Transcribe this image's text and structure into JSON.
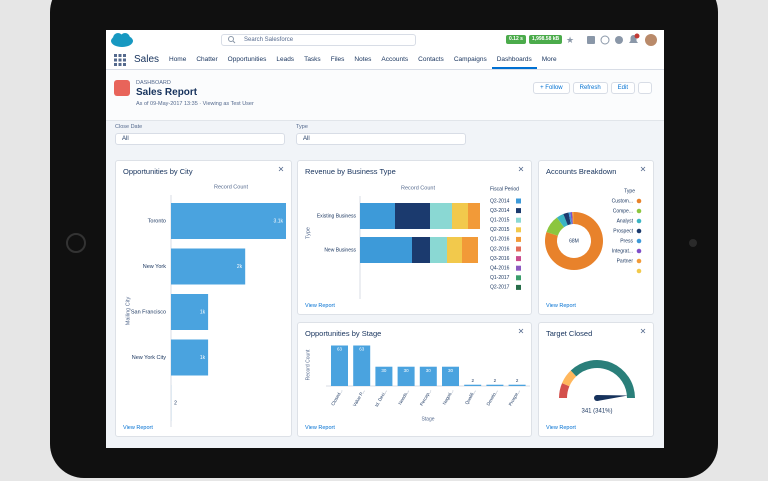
{
  "header": {
    "search_placeholder": "Search Salesforce",
    "badges": [
      "0.12 s",
      "1,998.58 kB"
    ]
  },
  "nav": {
    "app": "Sales",
    "tabs": [
      "Home",
      "Chatter",
      "Opportunities",
      "Leads",
      "Tasks",
      "Files",
      "Notes",
      "Accounts",
      "Contacts",
      "Campaigns",
      "Dashboards",
      "More"
    ],
    "active": 10
  },
  "page_header": {
    "object": "DASHBOARD",
    "title": "Sales Report",
    "subtitle": "As of 09-May-2017 13:35 · Viewing as Test User",
    "buttons": [
      "+ Follow",
      "Refresh",
      "Edit"
    ]
  },
  "filters": [
    {
      "label": "Close Date",
      "value": "All"
    },
    {
      "label": "Type",
      "value": "All"
    }
  ],
  "chart_data": [
    {
      "type": "hbar",
      "title": "Opportunities by City",
      "x_label": "Record Count",
      "y_label": "Mailing City",
      "link": "View Report",
      "categories": [
        "Toronto",
        "New York",
        "San Francisco",
        "New York City",
        null
      ],
      "values": [
        3100,
        2000,
        1000,
        1000,
        2
      ],
      "value_labels": [
        "3.1k",
        "2k",
        "1k",
        "1k",
        "2"
      ],
      "xlim": [
        0,
        3100
      ],
      "color": "#4aa3df"
    },
    {
      "type": "stacked_hbar",
      "title": "Revenue by Business Type",
      "x_label": "Record Count",
      "y_label": "Type",
      "legend_title": "Fiscal Period",
      "link": "View Report",
      "categories": [
        "Existing Business",
        "New Business"
      ],
      "xlim": [
        0,
        125
      ],
      "series": [
        {
          "name": "Q2-2014",
          "color": "#3d9ad9",
          "values": [
            35,
            52
          ]
        },
        {
          "name": "Q3-2014",
          "color": "#1b3a6e",
          "values": [
            35,
            18
          ]
        },
        {
          "name": "Q1-2015",
          "color": "#8ad8d3",
          "values": [
            22,
            17
          ]
        },
        {
          "name": "Q2-2015",
          "color": "#f2c94c",
          "values": [
            16,
            15
          ]
        },
        {
          "name": "Q1-2016",
          "color": "#f29a38",
          "values": [
            12,
            16
          ]
        },
        {
          "name": "Q2-2016",
          "color": "#e26b5a",
          "values": [
            0,
            0
          ]
        },
        {
          "name": "Q3-2016",
          "color": "#c94c8e",
          "values": [
            0,
            0
          ]
        },
        {
          "name": "Q4-2016",
          "color": "#8b59c0",
          "values": [
            0,
            0
          ]
        },
        {
          "name": "Q1-2017",
          "color": "#3a9d6b",
          "values": [
            0,
            0
          ]
        },
        {
          "name": "Q2-2017",
          "color": "#276c49",
          "values": [
            0,
            0
          ]
        }
      ]
    },
    {
      "type": "donut",
      "title": "Accounts Breakdown",
      "legend_title": "Type",
      "center_label": "68M",
      "link": "View Report",
      "categories": [
        "Custom...",
        "Compe...",
        "Analyst",
        "Prospect",
        "Press",
        "Integrat...",
        "Partner",
        null
      ],
      "values": [
        80,
        10,
        4,
        3,
        1,
        1,
        1,
        0
      ],
      "colors": [
        "#e8822b",
        "#8cc63f",
        "#3bb5c4",
        "#1b3a6e",
        "#3d9ad9",
        "#7f4fc9",
        "#f29a38",
        "#f2c94c"
      ]
    },
    {
      "type": "bar",
      "title": "Opportunities by Stage",
      "x_label": "Stage",
      "y_label": "Record Count",
      "link": "View Report",
      "categories": [
        "Closed...",
        "Value P...",
        "Id. Deci...",
        "Needs...",
        "Percep...",
        "Negoti...",
        "Qualifi...",
        "Develo...",
        "Prospe..."
      ],
      "values": [
        63,
        63,
        30,
        30,
        30,
        30,
        2,
        2,
        2
      ],
      "ylim": [
        0,
        70
      ],
      "color": "#4aa3df"
    },
    {
      "type": "gauge",
      "title": "Target Closed",
      "link": "View Report",
      "value": 341,
      "value_label": "341 (341%)",
      "ylim": [
        0,
        350
      ],
      "bands": [
        {
          "to": 45,
          "color": "#d4504c"
        },
        {
          "to": 90,
          "color": "#ffb75d"
        },
        {
          "to": 350,
          "color": "#2a7f7a"
        }
      ],
      "needle_color": "#16325c"
    }
  ]
}
